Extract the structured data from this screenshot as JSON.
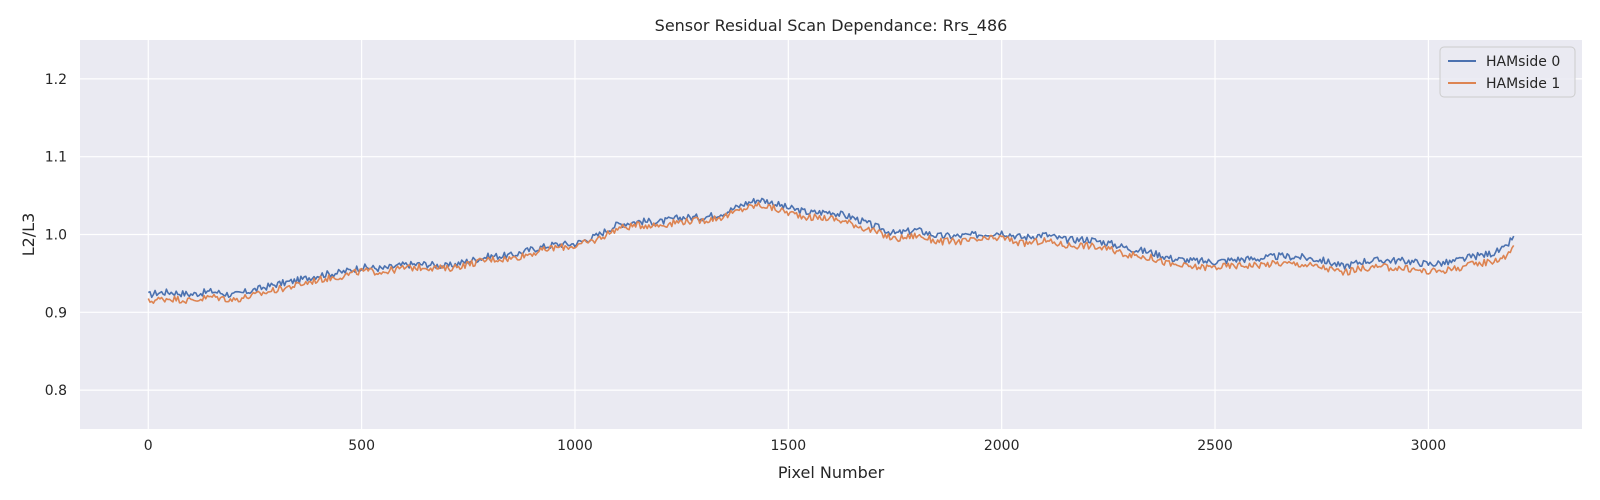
{
  "chart_data": {
    "type": "line",
    "title": "Sensor Residual Scan Dependance: Rrs_486",
    "xlabel": "Pixel Number",
    "ylabel": "L2/L3",
    "xlim": [
      -160,
      3360
    ],
    "ylim": [
      0.75,
      1.25
    ],
    "x_ticks": [
      0,
      500,
      1000,
      1500,
      2000,
      2500,
      3000
    ],
    "x_tick_labels": [
      "0",
      "500",
      "1000",
      "1500",
      "2000",
      "2500",
      "3000"
    ],
    "y_ticks": [
      0.8,
      0.9,
      1.0,
      1.1,
      1.2
    ],
    "y_tick_labels": [
      "0.8",
      "0.9",
      "1.0",
      "1.1",
      "1.2"
    ],
    "grid": true,
    "legend_position": "top-right",
    "series": [
      {
        "name": "HAMside 0",
        "color": "#4c72b0",
        "x": [
          0,
          20,
          50,
          100,
          150,
          200,
          250,
          300,
          350,
          400,
          450,
          500,
          550,
          600,
          650,
          700,
          750,
          800,
          850,
          900,
          950,
          1000,
          1050,
          1100,
          1150,
          1200,
          1250,
          1300,
          1350,
          1400,
          1430,
          1450,
          1500,
          1550,
          1600,
          1650,
          1700,
          1750,
          1800,
          1850,
          1900,
          1950,
          2000,
          2050,
          2100,
          2150,
          2200,
          2250,
          2300,
          2350,
          2400,
          2450,
          2500,
          2550,
          2600,
          2650,
          2700,
          2750,
          2800,
          2850,
          2900,
          2950,
          3000,
          3050,
          3100,
          3150,
          3180,
          3200
        ],
        "y": [
          0.922,
          0.925,
          0.926,
          0.923,
          0.927,
          0.922,
          0.929,
          0.936,
          0.941,
          0.948,
          0.951,
          0.958,
          0.956,
          0.961,
          0.962,
          0.959,
          0.966,
          0.972,
          0.973,
          0.981,
          0.987,
          0.988,
          0.998,
          1.013,
          1.017,
          1.016,
          1.022,
          1.022,
          1.028,
          1.04,
          1.045,
          1.043,
          1.034,
          1.028,
          1.029,
          1.022,
          1.011,
          1.001,
          1.006,
          0.998,
          0.998,
          1.0,
          1.003,
          0.996,
          1.0,
          0.993,
          0.994,
          0.989,
          0.982,
          0.977,
          0.969,
          0.966,
          0.965,
          0.968,
          0.969,
          0.972,
          0.971,
          0.967,
          0.959,
          0.966,
          0.967,
          0.966,
          0.962,
          0.964,
          0.971,
          0.976,
          0.982,
          0.998
        ]
      },
      {
        "name": "HAMside 1",
        "color": "#dd8452",
        "x": [
          0,
          20,
          50,
          100,
          150,
          200,
          250,
          300,
          350,
          400,
          450,
          500,
          550,
          600,
          650,
          700,
          750,
          800,
          850,
          900,
          950,
          1000,
          1050,
          1100,
          1150,
          1200,
          1250,
          1300,
          1350,
          1400,
          1430,
          1450,
          1500,
          1550,
          1600,
          1650,
          1700,
          1750,
          1800,
          1850,
          1900,
          1950,
          2000,
          2050,
          2100,
          2150,
          2200,
          2250,
          2300,
          2350,
          2400,
          2450,
          2500,
          2550,
          2600,
          2650,
          2700,
          2750,
          2800,
          2850,
          2900,
          2950,
          3000,
          3050,
          3100,
          3150,
          3180,
          3200
        ],
        "y": [
          0.914,
          0.916,
          0.918,
          0.915,
          0.92,
          0.916,
          0.922,
          0.929,
          0.935,
          0.942,
          0.946,
          0.953,
          0.952,
          0.957,
          0.958,
          0.956,
          0.962,
          0.968,
          0.969,
          0.976,
          0.983,
          0.985,
          0.993,
          1.008,
          1.012,
          1.012,
          1.017,
          1.018,
          1.023,
          1.034,
          1.038,
          1.036,
          1.028,
          1.022,
          1.021,
          1.014,
          1.004,
          0.994,
          0.999,
          0.991,
          0.991,
          0.993,
          0.996,
          0.988,
          0.992,
          0.986,
          0.986,
          0.981,
          0.974,
          0.97,
          0.961,
          0.958,
          0.958,
          0.96,
          0.961,
          0.963,
          0.962,
          0.958,
          0.951,
          0.957,
          0.958,
          0.956,
          0.952,
          0.955,
          0.961,
          0.966,
          0.971,
          0.986
        ]
      }
    ]
  }
}
